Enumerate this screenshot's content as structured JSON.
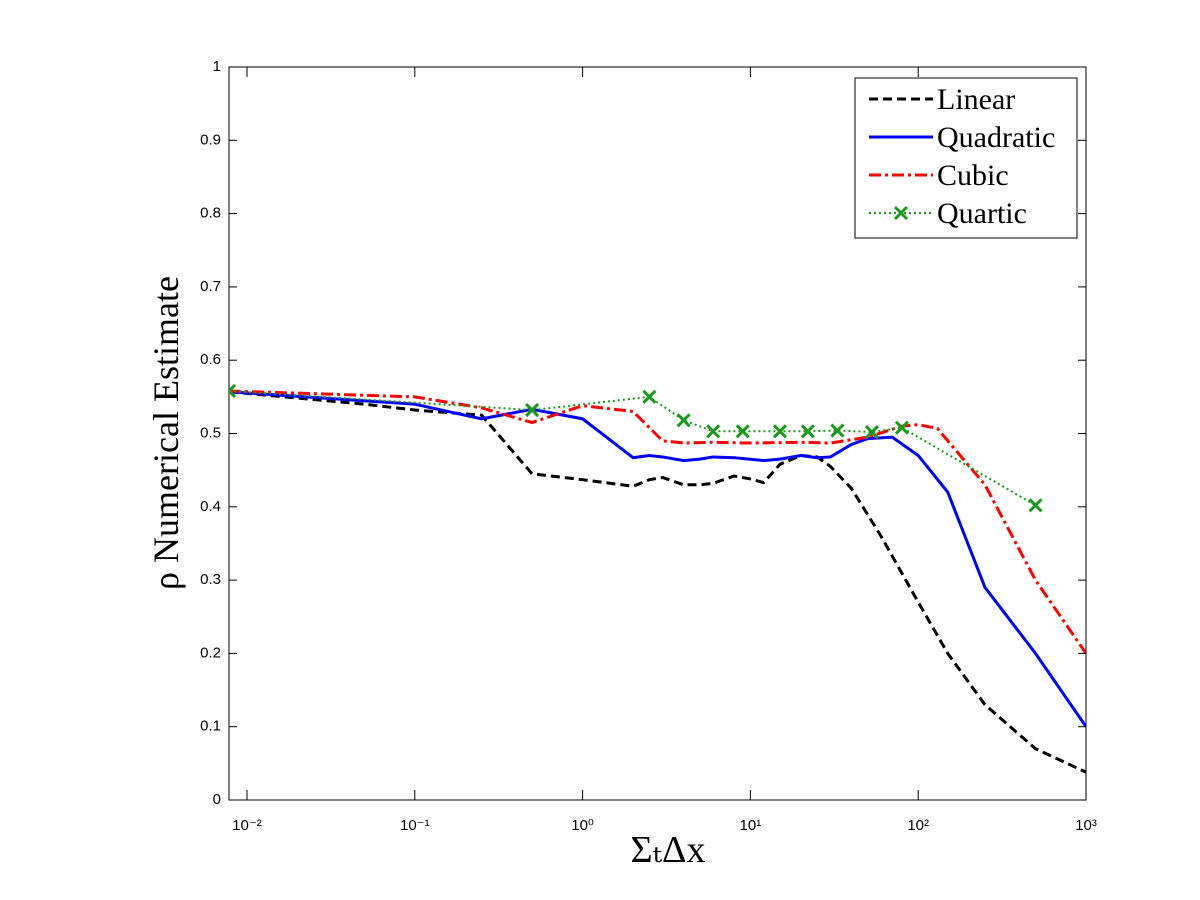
{
  "chart_data": {
    "type": "line",
    "xlabel": "ΣₜΔx",
    "ylabel": "ρ Numerical Estimate",
    "xscale": "log",
    "xlim": [
      0.0078125,
      1000
    ],
    "xticks": [
      {
        "value": 0.01,
        "label": "10⁻²"
      },
      {
        "value": 0.1,
        "label": "10⁻¹"
      },
      {
        "value": 1,
        "label": "10⁰"
      },
      {
        "value": 10,
        "label": "10¹"
      },
      {
        "value": 100,
        "label": "10²"
      },
      {
        "value": 1000,
        "label": "10³"
      }
    ],
    "ylim": [
      0,
      1
    ],
    "yticks": [
      0,
      0.1,
      0.2,
      0.3,
      0.4,
      0.5,
      0.6,
      0.7,
      0.8,
      0.9,
      1
    ],
    "legend": "top-right",
    "series": [
      {
        "name": "Linear",
        "color": "#000000",
        "style": "dashed",
        "x": [
          0.0078125,
          0.05,
          0.1,
          0.25,
          0.5,
          1,
          2,
          2.5,
          3,
          4,
          5,
          6,
          8,
          10,
          12,
          15,
          20,
          25,
          30,
          40,
          60,
          100,
          150,
          250,
          500,
          1000
        ],
        "values": [
          0.557,
          0.54,
          0.532,
          0.525,
          0.445,
          0.437,
          0.428,
          0.437,
          0.44,
          0.43,
          0.43,
          0.432,
          0.442,
          0.438,
          0.433,
          0.458,
          0.47,
          0.468,
          0.455,
          0.425,
          0.36,
          0.27,
          0.2,
          0.13,
          0.07,
          0.038
        ]
      },
      {
        "name": "Quadratic",
        "color": "#0000ff",
        "style": "solid",
        "x": [
          0.0078125,
          0.1,
          0.25,
          0.5,
          1,
          2,
          2.5,
          3,
          4,
          5,
          6,
          8,
          12,
          15,
          20,
          25,
          30,
          40,
          50,
          70,
          100,
          150,
          250,
          500,
          1000
        ],
        "values": [
          0.557,
          0.54,
          0.52,
          0.533,
          0.52,
          0.467,
          0.47,
          0.468,
          0.463,
          0.465,
          0.468,
          0.467,
          0.463,
          0.465,
          0.47,
          0.467,
          0.468,
          0.485,
          0.493,
          0.495,
          0.47,
          0.42,
          0.29,
          0.2,
          0.1
        ]
      },
      {
        "name": "Cubic",
        "color": "#ff0000",
        "style": "dashdot",
        "x": [
          0.0078125,
          0.1,
          0.25,
          0.5,
          1,
          2,
          3,
          4,
          6,
          10,
          20,
          30,
          50,
          80,
          100,
          130,
          250,
          500,
          1000
        ],
        "values": [
          0.558,
          0.55,
          0.535,
          0.515,
          0.538,
          0.53,
          0.49,
          0.487,
          0.488,
          0.487,
          0.488,
          0.487,
          0.495,
          0.51,
          0.512,
          0.507,
          0.43,
          0.3,
          0.2
        ]
      },
      {
        "name": "Quartic",
        "color": "#1a9a1a",
        "style": "dotted",
        "marker": "x",
        "x": [
          0.0078125,
          0.5,
          2.5,
          4,
          6,
          9,
          15,
          22,
          33,
          53,
          80,
          500
        ],
        "values": [
          0.558,
          0.532,
          0.55,
          0.518,
          0.503,
          0.503,
          0.503,
          0.503,
          0.504,
          0.502,
          0.508,
          0.402
        ]
      }
    ]
  }
}
